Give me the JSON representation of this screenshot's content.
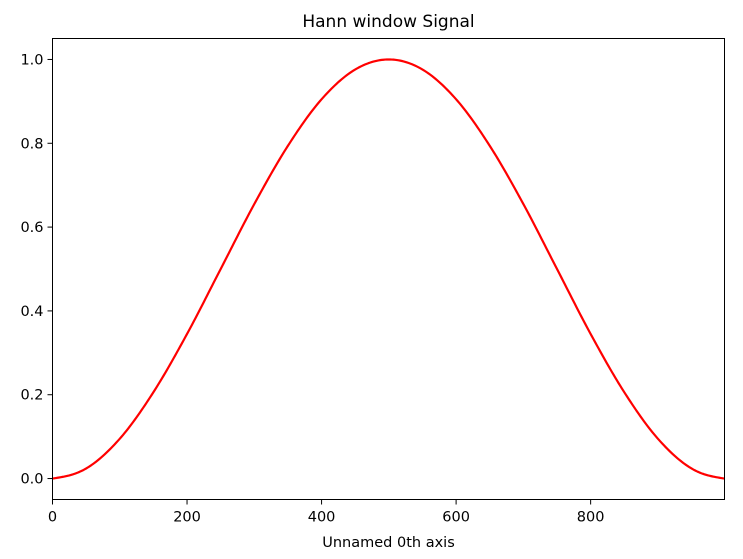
{
  "chart_data": {
    "type": "line",
    "title": "Hann window Signal",
    "xlabel": "Unnamed 0th axis",
    "ylabel": "",
    "xlim": [
      0,
      999
    ],
    "ylim": [
      -0.05,
      1.05
    ],
    "x_ticks": [
      0,
      200,
      400,
      600,
      800
    ],
    "x_tick_labels": [
      "0",
      "200",
      "400",
      "600",
      "800"
    ],
    "y_ticks": [
      0.0,
      0.2,
      0.4,
      0.6,
      0.8,
      1.0
    ],
    "y_tick_labels": [
      "0.0",
      "0.2",
      "0.4",
      "0.6",
      "0.8",
      "1.0"
    ],
    "grid": false,
    "series": [
      {
        "color": "#ff0000",
        "x": [
          0,
          50,
          100,
          150,
          200,
          250,
          300,
          350,
          400,
          450,
          500,
          550,
          600,
          650,
          700,
          750,
          800,
          850,
          900,
          950,
          999
        ],
        "y": [
          0.0,
          0.024,
          0.095,
          0.206,
          0.345,
          0.5,
          0.655,
          0.794,
          0.905,
          0.976,
          1.0,
          0.976,
          0.905,
          0.794,
          0.655,
          0.5,
          0.345,
          0.206,
          0.095,
          0.024,
          0.0
        ]
      }
    ]
  }
}
